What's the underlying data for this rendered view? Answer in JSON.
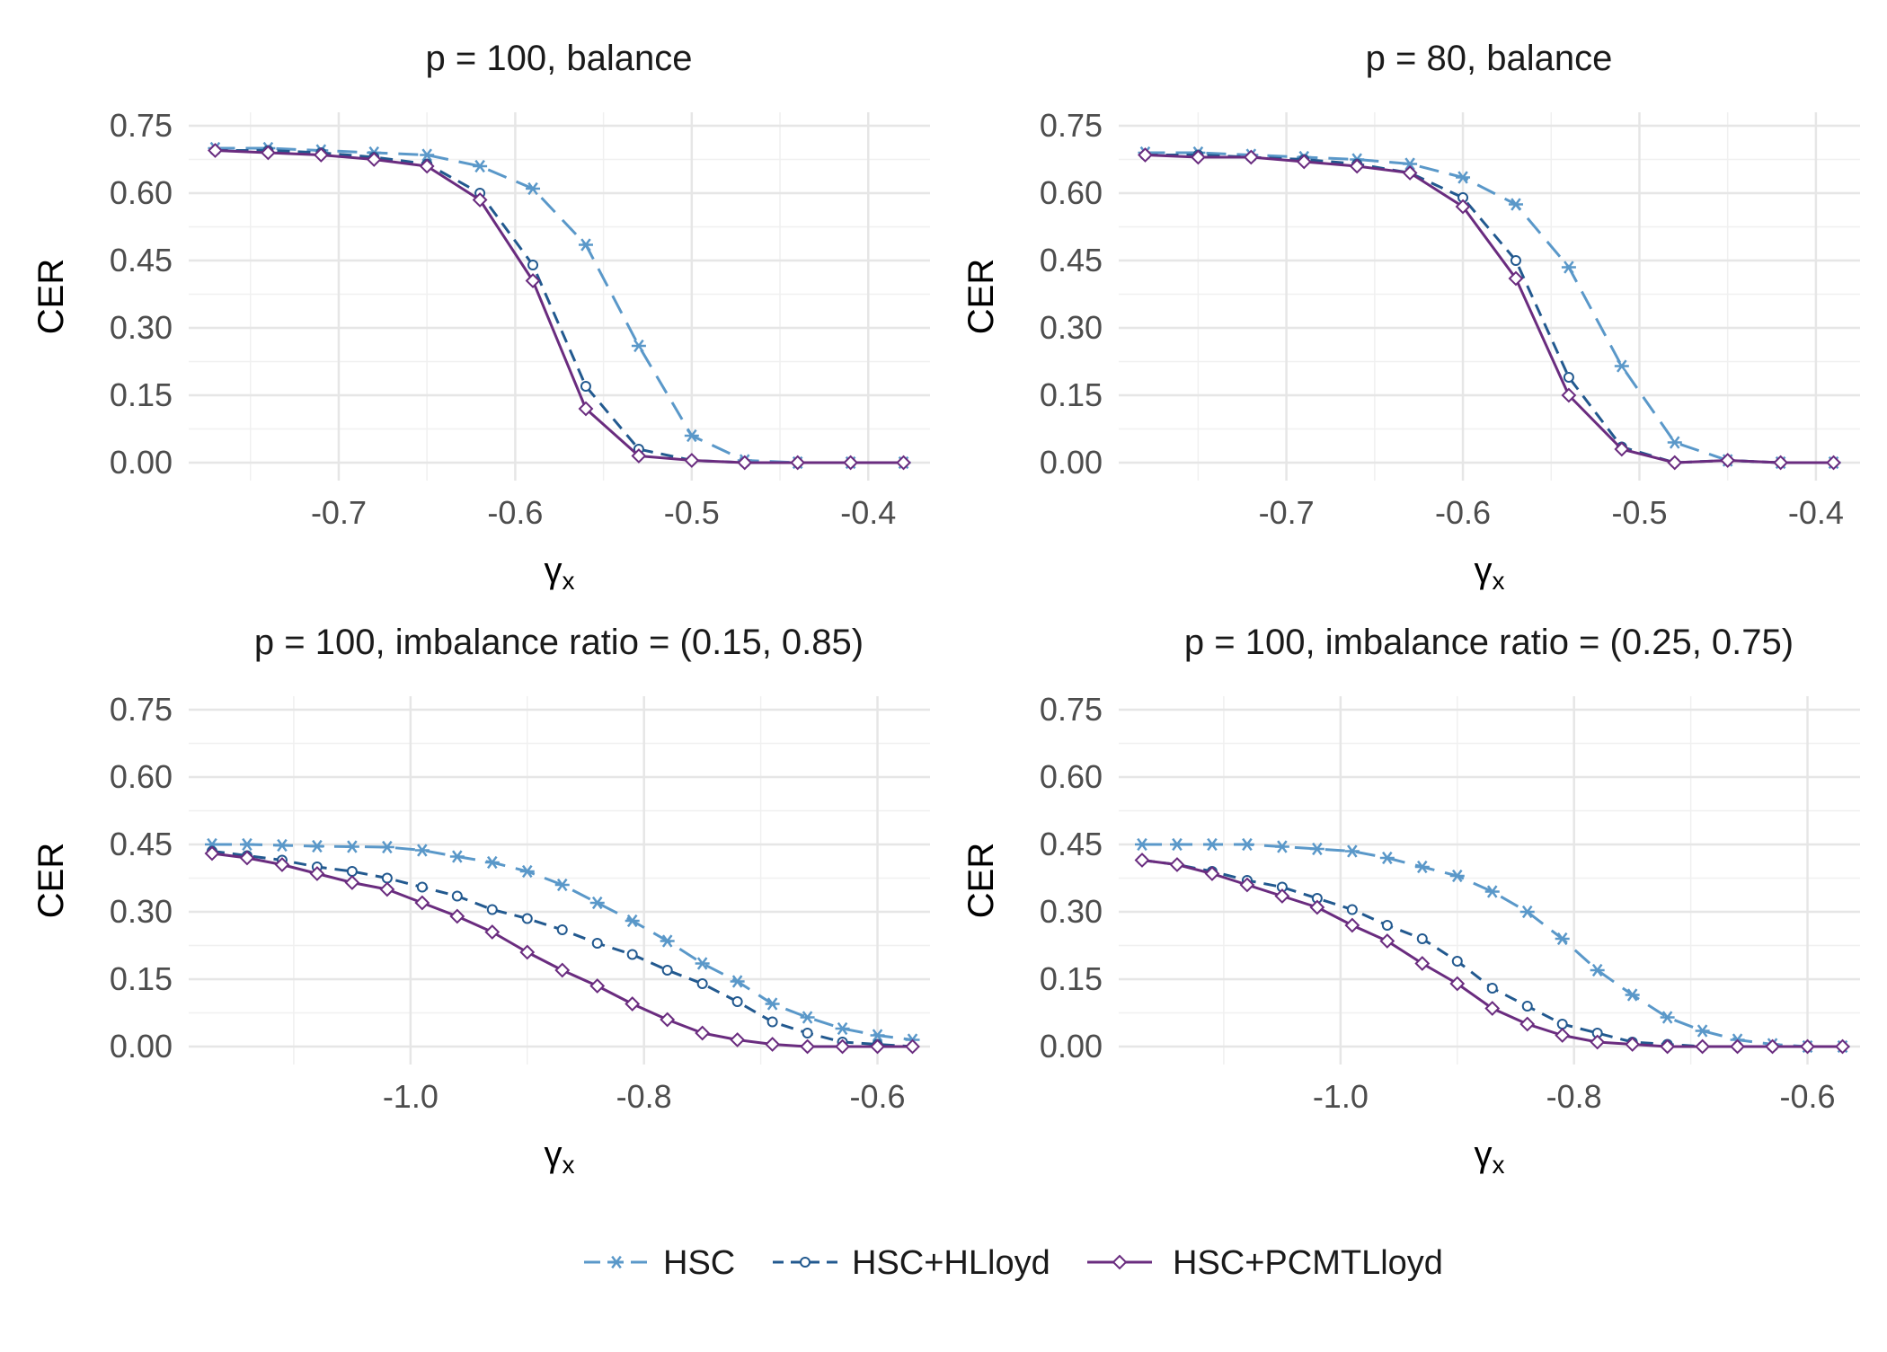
{
  "legend": {
    "items": [
      {
        "label": "HSC",
        "color": "#5a98c9",
        "dash": "long",
        "marker": "asterisk"
      },
      {
        "label": "HSC+HLloyd",
        "color": "#22598f",
        "dash": "short",
        "marker": "circle"
      },
      {
        "label": "HSC+PCMTLloyd",
        "color": "#6a2c7f",
        "dash": "solid",
        "marker": "diamond"
      }
    ]
  },
  "chart_data": [
    {
      "type": "line",
      "title": "p = 100, balance",
      "xlabel": "γ",
      "xlabel_sub": "x",
      "ylabel": "CER",
      "xlim": [
        -0.785,
        -0.365
      ],
      "ylim": [
        -0.04,
        0.78
      ],
      "xticks": [
        -0.7,
        -0.6,
        -0.5,
        -0.4
      ],
      "xtick_labels": [
        "-0.7",
        "-0.6",
        "-0.5",
        "-0.4"
      ],
      "yticks": [
        0,
        0.15,
        0.3,
        0.45,
        0.6,
        0.75
      ],
      "ytick_labels": [
        "0.00",
        "0.15",
        "0.30",
        "0.45",
        "0.60",
        "0.75"
      ],
      "x": [
        -0.77,
        -0.74,
        -0.71,
        -0.68,
        -0.65,
        -0.62,
        -0.59,
        -0.56,
        -0.53,
        -0.5,
        -0.47,
        -0.44,
        -0.41,
        -0.38
      ],
      "series": [
        {
          "name": "HSC",
          "values": [
            0.7,
            0.7,
            0.695,
            0.69,
            0.685,
            0.66,
            0.61,
            0.485,
            0.26,
            0.06,
            0.005,
            0.0,
            0.0,
            0.0
          ]
        },
        {
          "name": "HSC+HLloyd",
          "values": [
            0.695,
            0.695,
            0.69,
            0.68,
            0.665,
            0.6,
            0.44,
            0.17,
            0.03,
            0.005,
            0.0,
            0.0,
            0.0,
            0.0
          ]
        },
        {
          "name": "HSC+PCMTLloyd",
          "values": [
            0.695,
            0.69,
            0.685,
            0.675,
            0.66,
            0.585,
            0.405,
            0.12,
            0.015,
            0.005,
            0.0,
            0.0,
            0.0,
            0.0
          ]
        }
      ]
    },
    {
      "type": "line",
      "title": "p = 80, balance",
      "xlabel": "γ",
      "xlabel_sub": "x",
      "ylabel": "CER",
      "xlim": [
        -0.795,
        -0.375
      ],
      "ylim": [
        -0.04,
        0.78
      ],
      "xticks": [
        -0.7,
        -0.6,
        -0.5,
        -0.4
      ],
      "xtick_labels": [
        "-0.7",
        "-0.6",
        "-0.5",
        "-0.4"
      ],
      "yticks": [
        0,
        0.15,
        0.3,
        0.45,
        0.6,
        0.75
      ],
      "ytick_labels": [
        "0.00",
        "0.15",
        "0.30",
        "0.45",
        "0.60",
        "0.75"
      ],
      "x": [
        -0.78,
        -0.75,
        -0.72,
        -0.69,
        -0.66,
        -0.63,
        -0.6,
        -0.57,
        -0.54,
        -0.51,
        -0.48,
        -0.45,
        -0.42,
        -0.39
      ],
      "series": [
        {
          "name": "HSC",
          "values": [
            0.69,
            0.69,
            0.685,
            0.68,
            0.675,
            0.665,
            0.635,
            0.575,
            0.435,
            0.215,
            0.045,
            0.005,
            0.0,
            0.0
          ]
        },
        {
          "name": "HSC+HLloyd",
          "values": [
            0.685,
            0.685,
            0.68,
            0.675,
            0.665,
            0.645,
            0.59,
            0.45,
            0.19,
            0.035,
            0.0,
            0.005,
            0.0,
            0.0
          ]
        },
        {
          "name": "HSC+PCMTLloyd",
          "values": [
            0.685,
            0.68,
            0.68,
            0.67,
            0.66,
            0.645,
            0.57,
            0.41,
            0.15,
            0.03,
            0.0,
            0.005,
            0.0,
            0.0
          ]
        }
      ]
    },
    {
      "type": "line",
      "title": "p = 100, imbalance ratio = (0.15, 0.85)",
      "xlabel": "γ",
      "xlabel_sub": "x",
      "ylabel": "CER",
      "xlim": [
        -1.19,
        -0.555
      ],
      "ylim": [
        -0.04,
        0.78
      ],
      "xticks": [
        -1.0,
        -0.8,
        -0.6
      ],
      "xtick_labels": [
        "-1.0",
        "-0.8",
        "-0.6"
      ],
      "yticks": [
        0,
        0.15,
        0.3,
        0.45,
        0.6,
        0.75
      ],
      "ytick_labels": [
        "0.00",
        "0.15",
        "0.30",
        "0.45",
        "0.60",
        "0.75"
      ],
      "x": [
        -1.17,
        -1.14,
        -1.11,
        -1.08,
        -1.05,
        -1.02,
        -0.99,
        -0.96,
        -0.93,
        -0.9,
        -0.87,
        -0.84,
        -0.81,
        -0.78,
        -0.75,
        -0.72,
        -0.69,
        -0.66,
        -0.63,
        -0.6,
        -0.57
      ],
      "series": [
        {
          "name": "HSC",
          "values": [
            0.45,
            0.45,
            0.448,
            0.446,
            0.445,
            0.444,
            0.437,
            0.423,
            0.41,
            0.39,
            0.36,
            0.32,
            0.28,
            0.235,
            0.185,
            0.145,
            0.095,
            0.065,
            0.04,
            0.025,
            0.015
          ]
        },
        {
          "name": "HSC+HLloyd",
          "values": [
            0.435,
            0.425,
            0.415,
            0.4,
            0.39,
            0.375,
            0.355,
            0.335,
            0.305,
            0.285,
            0.26,
            0.23,
            0.205,
            0.17,
            0.14,
            0.1,
            0.055,
            0.03,
            0.01,
            0.005,
            0.0
          ]
        },
        {
          "name": "HSC+PCMTLloyd",
          "values": [
            0.43,
            0.42,
            0.405,
            0.385,
            0.365,
            0.35,
            0.32,
            0.29,
            0.255,
            0.21,
            0.17,
            0.135,
            0.095,
            0.06,
            0.03,
            0.015,
            0.005,
            0.0,
            0.0,
            0.0,
            0.0
          ]
        }
      ]
    },
    {
      "type": "line",
      "title": "p = 100, imbalance ratio = (0.25, 0.75)",
      "xlabel": "γ",
      "xlabel_sub": "x",
      "ylabel": "CER",
      "xlim": [
        -1.19,
        -0.555
      ],
      "ylim": [
        -0.04,
        0.78
      ],
      "xticks": [
        -1.0,
        -0.8,
        -0.6
      ],
      "xtick_labels": [
        "-1.0",
        "-0.8",
        "-0.6"
      ],
      "yticks": [
        0,
        0.15,
        0.3,
        0.45,
        0.6,
        0.75
      ],
      "ytick_labels": [
        "0.00",
        "0.15",
        "0.30",
        "0.45",
        "0.60",
        "0.75"
      ],
      "x": [
        -1.17,
        -1.14,
        -1.11,
        -1.08,
        -1.05,
        -1.02,
        -0.99,
        -0.96,
        -0.93,
        -0.9,
        -0.87,
        -0.84,
        -0.81,
        -0.78,
        -0.75,
        -0.72,
        -0.69,
        -0.66,
        -0.63,
        -0.6,
        -0.57
      ],
      "series": [
        {
          "name": "HSC",
          "values": [
            0.45,
            0.45,
            0.45,
            0.45,
            0.445,
            0.44,
            0.435,
            0.42,
            0.4,
            0.38,
            0.345,
            0.3,
            0.24,
            0.17,
            0.115,
            0.065,
            0.035,
            0.015,
            0.005,
            0.0,
            0.0
          ]
        },
        {
          "name": "HSC+HLloyd",
          "values": [
            0.415,
            0.405,
            0.39,
            0.37,
            0.355,
            0.33,
            0.305,
            0.27,
            0.24,
            0.19,
            0.13,
            0.09,
            0.05,
            0.03,
            0.01,
            0.005,
            0.0,
            0.0,
            0.0,
            0.0,
            0.0
          ]
        },
        {
          "name": "HSC+PCMTLloyd",
          "values": [
            0.415,
            0.405,
            0.385,
            0.36,
            0.335,
            0.31,
            0.27,
            0.235,
            0.185,
            0.14,
            0.085,
            0.05,
            0.025,
            0.01,
            0.005,
            0.0,
            0.0,
            0.0,
            0.0,
            0.0,
            0.0
          ]
        }
      ]
    }
  ]
}
